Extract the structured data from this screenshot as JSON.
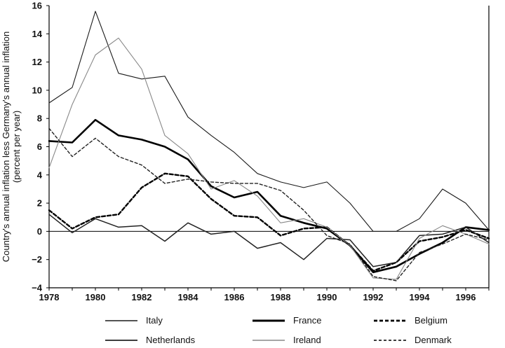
{
  "chart_data": {
    "type": "line",
    "title": "",
    "xlabel": "",
    "ylabel_lines": [
      "Country's annual inflation less Germany's annual inflation",
      "(percent per year)"
    ],
    "xlim": [
      1978,
      1997
    ],
    "ylim": [
      -4,
      16
    ],
    "xticks": [
      1978,
      1980,
      1982,
      1984,
      1986,
      1988,
      1990,
      1992,
      1994,
      1996
    ],
    "yticks": [
      -4,
      -2,
      0,
      2,
      4,
      6,
      8,
      10,
      12,
      14,
      16
    ],
    "zero_line": true,
    "grid": false,
    "legend_position": "bottom",
    "x": [
      1978,
      1979,
      1980,
      1981,
      1982,
      1983,
      1984,
      1985,
      1986,
      1987,
      1988,
      1989,
      1990,
      1991,
      1992,
      1993,
      1994,
      1995,
      1996,
      1997
    ],
    "series": [
      {
        "name": "Italy",
        "style": "thin-solid",
        "color": "#1a1a1a",
        "values": [
          9.1,
          10.2,
          15.6,
          11.2,
          10.8,
          11.0,
          8.1,
          6.8,
          5.6,
          4.1,
          3.5,
          3.1,
          3.5,
          2.0,
          0.0,
          0.0,
          0.9,
          3.0,
          2.0,
          0.1
        ]
      },
      {
        "name": "France",
        "style": "thick-solid",
        "color": "#000000",
        "values": [
          6.4,
          6.3,
          7.9,
          6.8,
          6.5,
          6.0,
          5.1,
          3.2,
          2.4,
          2.8,
          1.1,
          0.6,
          0.2,
          -1.0,
          -2.9,
          -2.5,
          -1.6,
          -0.8,
          0.3,
          0.1
        ]
      },
      {
        "name": "Belgium",
        "style": "thick-dashed",
        "color": "#000000",
        "values": [
          1.5,
          0.2,
          1.0,
          1.2,
          3.1,
          4.1,
          3.9,
          2.3,
          1.1,
          1.0,
          -0.3,
          0.2,
          0.3,
          -1.0,
          -2.8,
          -2.2,
          -0.7,
          -0.4,
          0.1,
          -0.5
        ]
      },
      {
        "name": "Netherlands",
        "style": "medium-solid",
        "color": "#222222",
        "values": [
          1.2,
          -0.1,
          0.9,
          0.3,
          0.4,
          -0.7,
          0.6,
          -0.2,
          0.0,
          -1.2,
          -0.8,
          -2.0,
          -0.5,
          -0.6,
          -2.5,
          -2.2,
          -0.3,
          -0.2,
          0.3,
          -0.8
        ]
      },
      {
        "name": "Ireland",
        "style": "thin-gray",
        "color": "#888888",
        "values": [
          4.5,
          9.0,
          12.5,
          13.7,
          11.5,
          6.8,
          5.5,
          3.0,
          3.6,
          2.5,
          0.6,
          0.9,
          0.3,
          -1.0,
          -3.3,
          -3.4,
          -0.5,
          0.4,
          -0.2,
          -0.9
        ]
      },
      {
        "name": "Denmark",
        "style": "thin-dashed",
        "color": "#222222",
        "values": [
          7.3,
          5.3,
          6.6,
          5.3,
          4.7,
          3.4,
          3.7,
          3.5,
          3.4,
          3.4,
          2.9,
          1.5,
          -0.3,
          -0.9,
          -3.2,
          -3.5,
          -1.5,
          -0.9,
          -0.2,
          -0.6
        ]
      }
    ]
  }
}
